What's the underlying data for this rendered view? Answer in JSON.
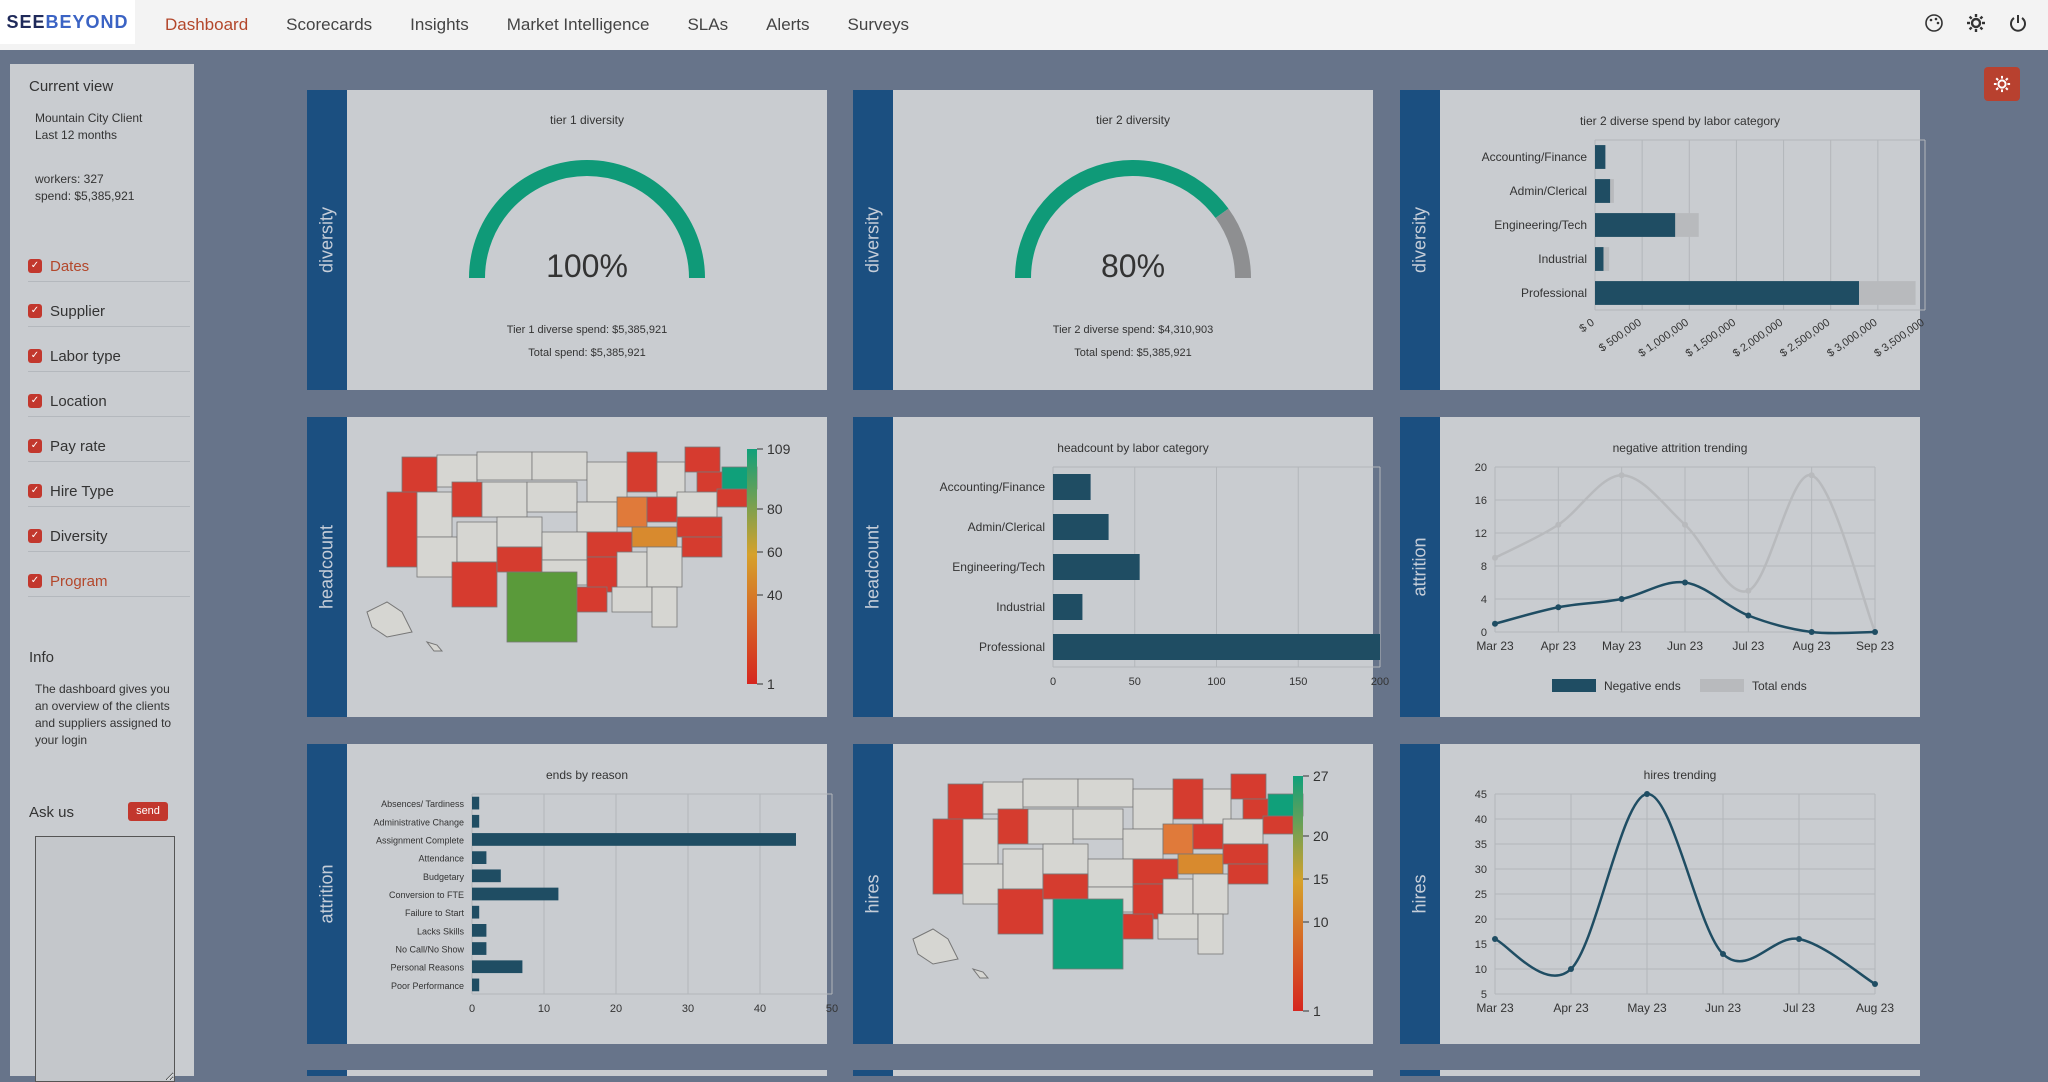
{
  "header": {
    "logo_part1": "SEE",
    "logo_part2": "BEYOND",
    "nav": [
      "Dashboard",
      "Scorecards",
      "Insights",
      "Market Intelligence",
      "SLAs",
      "Alerts",
      "Surveys"
    ],
    "active_nav": "Dashboard",
    "icons": [
      "palette-icon",
      "settings-icon",
      "power-icon"
    ]
  },
  "sidebar": {
    "current_view_title": "Current view",
    "client": "Mountain City Client",
    "period": "Last 12 months",
    "workers": "workers: 327",
    "spend": "spend: $5,385,921",
    "filters": [
      {
        "label": "Dates",
        "active": true
      },
      {
        "label": "Supplier",
        "active": false
      },
      {
        "label": "Labor type",
        "active": false
      },
      {
        "label": "Location",
        "active": false
      },
      {
        "label": "Pay rate",
        "active": false
      },
      {
        "label": "Hire Type",
        "active": false
      },
      {
        "label": "Diversity",
        "active": false
      },
      {
        "label": "Program",
        "active": true
      }
    ],
    "info_title": "Info",
    "info_text": "The dashboard gives you an overview of the clients and suppliers assigned to your login",
    "ask_title": "Ask us",
    "send_label": "send"
  },
  "colors": {
    "accent_red": "#c2372d",
    "band_blue": "#1b4f80",
    "bar_teal": "#1f4d63",
    "gauge_green": "#0f9a78",
    "gauge_grey": "#8e8f91"
  },
  "cards": {
    "tier1": {
      "band": "diversity",
      "title": "tier 1 diversity",
      "percent_value": 100,
      "value_label": "100%",
      "line1": "Tier 1 diverse spend: $5,385,921",
      "line2": "Total spend: $5,385,921"
    },
    "tier2": {
      "band": "diversity",
      "title": "tier 2 diversity",
      "percent_value": 80,
      "value_label": "80%",
      "line1": "Tier 2 diverse spend: $4,310,903",
      "line2": "Total spend: $5,385,921"
    },
    "tier2_spend": {
      "band": "diversity"
    },
    "map1": {
      "band": "headcount"
    },
    "headcount_chart": {
      "band": "headcount"
    },
    "attrition_trend": {
      "band": "attrition"
    },
    "ends_reason": {
      "band": "attrition"
    },
    "map2": {
      "band": "hires"
    },
    "hires_trend": {
      "band": "hires"
    }
  },
  "chart_data": [
    {
      "id": "tier2-spend",
      "type": "bar",
      "orientation": "horizontal",
      "title": "tier 2 diverse spend by labor category",
      "categories": [
        "Accounting/Finance",
        "Admin/Clerical",
        "Engineering/Tech",
        "Industrial",
        "Professional"
      ],
      "series": [
        {
          "values": [
            110000,
            160000,
            850000,
            90000,
            2800000
          ],
          "color": "#1f4d63"
        },
        {
          "values": [
            110000,
            200000,
            1100000,
            150000,
            3400000
          ],
          "color": "#b8babd"
        }
      ],
      "ticks": [
        "$ 0",
        "$ 500,000",
        "$ 1,000,000",
        "$ 1,500,000",
        "$ 2,000,000",
        "$ 2,500,000",
        "$ 3,000,000",
        "$ 3,500,000"
      ],
      "xlim": [
        0,
        3500000
      ]
    },
    {
      "id": "headcount-map",
      "type": "heatmap",
      "legend_ticks": [
        "109",
        "80",
        "60",
        "40",
        "1"
      ]
    },
    {
      "id": "headcount",
      "type": "bar",
      "orientation": "horizontal",
      "title": "headcount by labor category",
      "categories": [
        "Accounting/Finance",
        "Admin/Clerical",
        "Engineering/Tech",
        "Industrial",
        "Professional"
      ],
      "values": [
        23,
        34,
        53,
        18,
        200
      ],
      "ticks": [
        "0",
        "50",
        "100",
        "150",
        "200"
      ],
      "xlim": [
        0,
        200
      ]
    },
    {
      "id": "attrition-trend",
      "type": "line",
      "title": "negative attrition trending",
      "categories": [
        "Mar 23",
        "Apr 23",
        "May 23",
        "Jun 23",
        "Jul 23",
        "Aug 23",
        "Sep 23"
      ],
      "series": [
        {
          "name": "Negative ends",
          "values": [
            1,
            3,
            4,
            6,
            2,
            0,
            0
          ],
          "color": "#1f4d63"
        },
        {
          "name": "Total ends",
          "values": [
            9,
            13,
            19,
            13,
            5,
            19,
            0
          ],
          "color": "#b8babd"
        }
      ],
      "yticks": [
        "0",
        "4",
        "8",
        "12",
        "16",
        "20"
      ],
      "ylim": [
        0,
        20
      ],
      "legend": "bottom"
    },
    {
      "id": "ends-reason",
      "type": "bar",
      "orientation": "horizontal",
      "title": "ends by reason",
      "categories": [
        "Absences/ Tardiness",
        "Administrative Change",
        "Assignment Complete",
        "Attendance",
        "Budgetary",
        "Conversion to FTE",
        "Failure to Start",
        "Lacks Skills",
        "No Call/No Show",
        "Personal Reasons",
        "Poor Performance"
      ],
      "values": [
        1,
        1,
        45,
        2,
        4,
        12,
        1,
        2,
        2,
        7,
        1
      ],
      "ticks": [
        "0",
        "10",
        "20",
        "30",
        "40",
        "50"
      ],
      "xlim": [
        0,
        50
      ]
    },
    {
      "id": "hires-map",
      "type": "heatmap",
      "legend_ticks": [
        "27",
        "20",
        "15",
        "10",
        "1"
      ]
    },
    {
      "id": "hires-trend",
      "type": "line",
      "title": "hires trending",
      "categories": [
        "Mar 23",
        "Apr 23",
        "May 23",
        "Jun 23",
        "Jul 23",
        "Aug 23"
      ],
      "series": [
        {
          "values": [
            16,
            10,
            45,
            13,
            16,
            7
          ],
          "color": "#1f4d63"
        }
      ],
      "yticks": [
        "5",
        "10",
        "15",
        "20",
        "25",
        "30",
        "35",
        "40",
        "45"
      ],
      "ylim": [
        5,
        45
      ]
    }
  ]
}
